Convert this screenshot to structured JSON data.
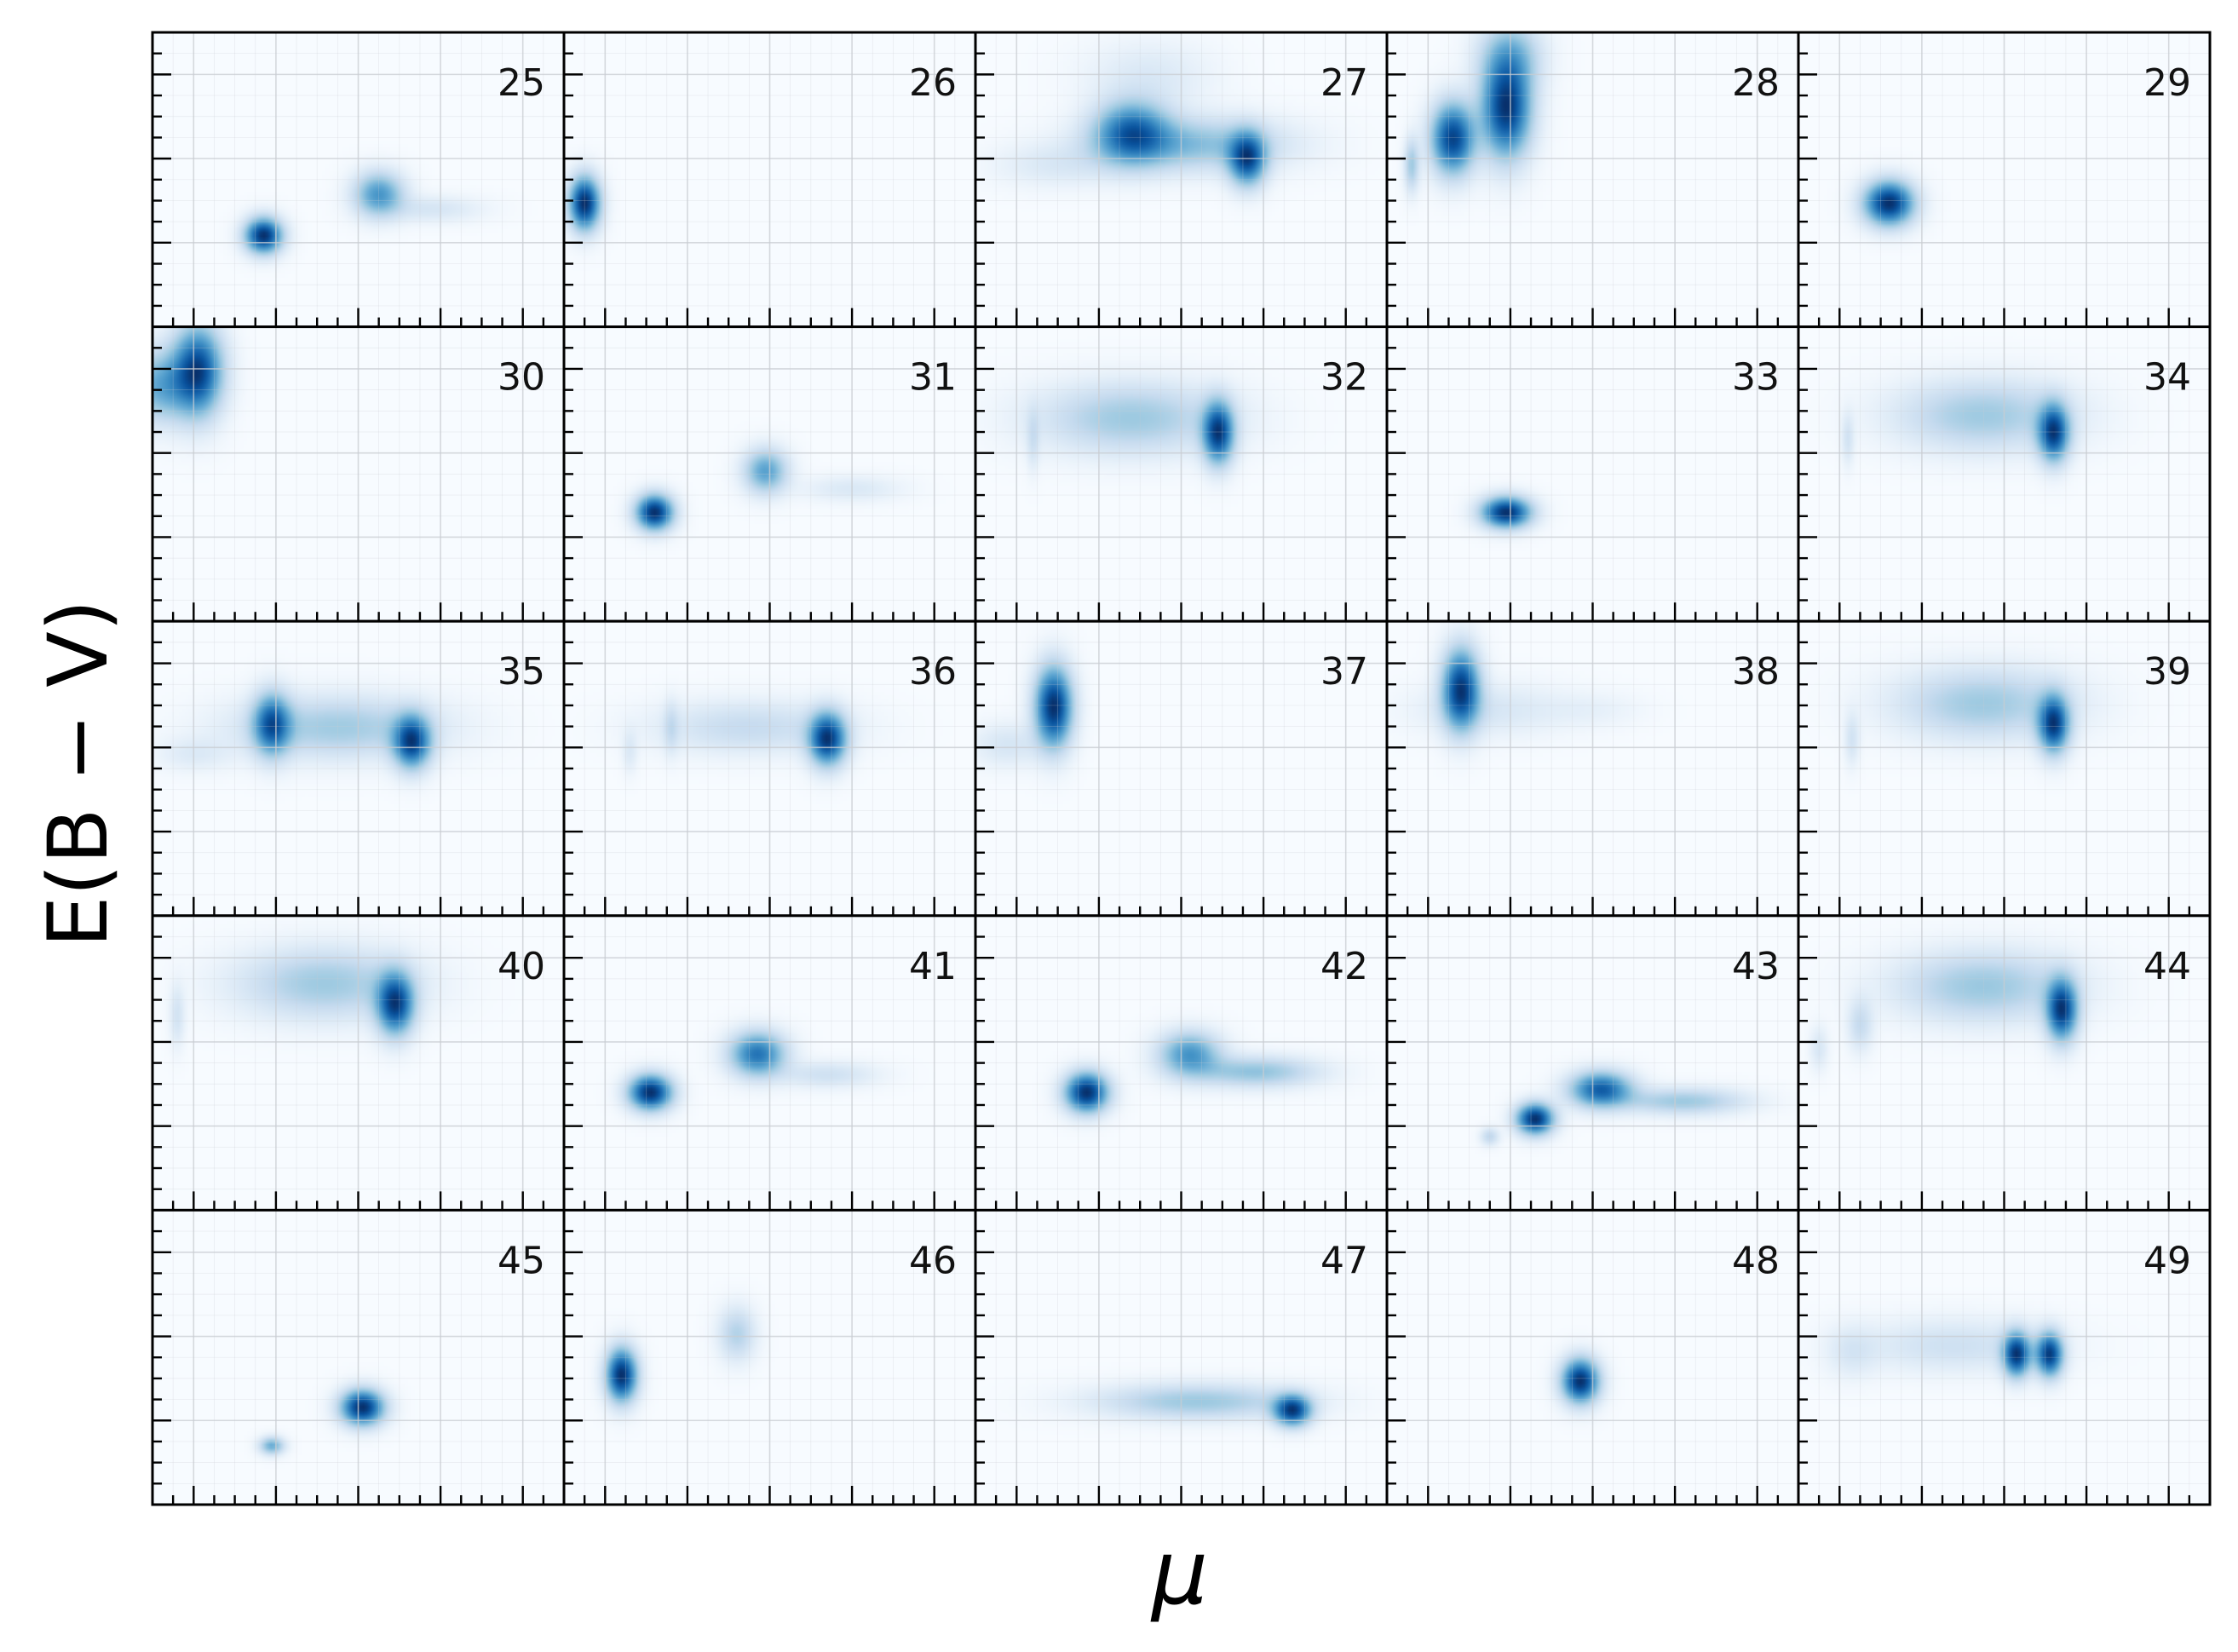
{
  "chart_data": {
    "type": "heatmap",
    "layout": {
      "rows": 5,
      "cols": 5
    },
    "xlabel": "μ",
    "ylabel": "E(B − V)",
    "colormap": "Blues",
    "colors": {
      "low": "#f7fbff",
      "high": "#08306b",
      "grid": "#c8ccd2",
      "frame": "#000000"
    },
    "grid": true,
    "x_range": [
      0,
      1
    ],
    "y_range": [
      0,
      1
    ],
    "panels": [
      {
        "label": "25",
        "blobs": [
          {
            "x": 0.27,
            "y": 0.31,
            "sx": 0.03,
            "sy": 0.04,
            "w": 1.0
          },
          {
            "x": 0.55,
            "y": 0.45,
            "sx": 0.04,
            "sy": 0.05,
            "w": 0.55
          },
          {
            "x": 0.68,
            "y": 0.4,
            "sx": 0.08,
            "sy": 0.03,
            "w": 0.12
          }
        ]
      },
      {
        "label": "26",
        "blobs": [
          {
            "x": 0.05,
            "y": 0.42,
            "sx": 0.025,
            "sy": 0.06,
            "w": 1.0
          }
        ]
      },
      {
        "label": "27",
        "blobs": [
          {
            "x": 0.38,
            "y": 0.66,
            "sx": 0.06,
            "sy": 0.07,
            "w": 0.85
          },
          {
            "x": 0.66,
            "y": 0.57,
            "sx": 0.03,
            "sy": 0.06,
            "w": 1.0
          },
          {
            "x": 0.52,
            "y": 0.62,
            "sx": 0.15,
            "sy": 0.06,
            "w": 0.45
          },
          {
            "x": 0.2,
            "y": 0.55,
            "sx": 0.1,
            "sy": 0.05,
            "w": 0.12
          },
          {
            "x": 0.42,
            "y": 0.85,
            "sx": 0.1,
            "sy": 0.08,
            "w": 0.12
          }
        ]
      },
      {
        "label": "28",
        "blobs": [
          {
            "x": 0.16,
            "y": 0.64,
            "sx": 0.035,
            "sy": 0.08,
            "w": 0.9
          },
          {
            "x": 0.29,
            "y": 0.74,
            "sx": 0.04,
            "sy": 0.11,
            "w": 0.95
          },
          {
            "x": 0.06,
            "y": 0.55,
            "sx": 0.012,
            "sy": 0.06,
            "w": 0.3
          },
          {
            "x": 0.3,
            "y": 0.92,
            "sx": 0.05,
            "sy": 0.08,
            "w": 0.35
          }
        ]
      },
      {
        "label": "29",
        "blobs": [
          {
            "x": 0.22,
            "y": 0.42,
            "sx": 0.04,
            "sy": 0.05,
            "w": 1.0
          }
        ]
      },
      {
        "label": "30",
        "blobs": [
          {
            "x": 0.11,
            "y": 0.85,
            "sx": 0.04,
            "sy": 0.1,
            "w": 1.0
          },
          {
            "x": 0.02,
            "y": 0.8,
            "sx": 0.05,
            "sy": 0.08,
            "w": 0.5
          }
        ]
      },
      {
        "label": "31",
        "blobs": [
          {
            "x": 0.22,
            "y": 0.37,
            "sx": 0.03,
            "sy": 0.04,
            "w": 1.0
          },
          {
            "x": 0.49,
            "y": 0.51,
            "sx": 0.035,
            "sy": 0.05,
            "w": 0.5
          },
          {
            "x": 0.7,
            "y": 0.45,
            "sx": 0.08,
            "sy": 0.03,
            "w": 0.1
          }
        ]
      },
      {
        "label": "32",
        "blobs": [
          {
            "x": 0.59,
            "y": 0.64,
            "sx": 0.025,
            "sy": 0.07,
            "w": 1.0
          },
          {
            "x": 0.38,
            "y": 0.69,
            "sx": 0.15,
            "sy": 0.08,
            "w": 0.35
          },
          {
            "x": 0.14,
            "y": 0.62,
            "sx": 0.01,
            "sy": 0.07,
            "w": 0.15
          }
        ]
      },
      {
        "label": "33",
        "blobs": [
          {
            "x": 0.29,
            "y": 0.37,
            "sx": 0.04,
            "sy": 0.035,
            "w": 1.0
          }
        ]
      },
      {
        "label": "34",
        "blobs": [
          {
            "x": 0.62,
            "y": 0.64,
            "sx": 0.025,
            "sy": 0.065,
            "w": 1.0
          },
          {
            "x": 0.45,
            "y": 0.7,
            "sx": 0.14,
            "sy": 0.08,
            "w": 0.35
          },
          {
            "x": 0.12,
            "y": 0.62,
            "sx": 0.01,
            "sy": 0.06,
            "w": 0.15
          }
        ]
      },
      {
        "label": "35",
        "blobs": [
          {
            "x": 0.29,
            "y": 0.65,
            "sx": 0.03,
            "sy": 0.07,
            "w": 0.85
          },
          {
            "x": 0.63,
            "y": 0.59,
            "sx": 0.03,
            "sy": 0.06,
            "w": 1.0
          },
          {
            "x": 0.45,
            "y": 0.64,
            "sx": 0.16,
            "sy": 0.07,
            "w": 0.35
          },
          {
            "x": 0.1,
            "y": 0.55,
            "sx": 0.06,
            "sy": 0.04,
            "w": 0.1
          }
        ]
      },
      {
        "label": "36",
        "blobs": [
          {
            "x": 0.64,
            "y": 0.6,
            "sx": 0.03,
            "sy": 0.06,
            "w": 1.0
          },
          {
            "x": 0.45,
            "y": 0.64,
            "sx": 0.15,
            "sy": 0.06,
            "w": 0.2
          },
          {
            "x": 0.26,
            "y": 0.64,
            "sx": 0.012,
            "sy": 0.06,
            "w": 0.15
          },
          {
            "x": 0.16,
            "y": 0.56,
            "sx": 0.012,
            "sy": 0.05,
            "w": 0.1
          }
        ]
      },
      {
        "label": "37",
        "blobs": [
          {
            "x": 0.19,
            "y": 0.71,
            "sx": 0.03,
            "sy": 0.09,
            "w": 1.0
          },
          {
            "x": 0.08,
            "y": 0.58,
            "sx": 0.06,
            "sy": 0.05,
            "w": 0.12
          }
        ]
      },
      {
        "label": "38",
        "blobs": [
          {
            "x": 0.18,
            "y": 0.77,
            "sx": 0.03,
            "sy": 0.09,
            "w": 1.0
          },
          {
            "x": 0.25,
            "y": 0.7,
            "sx": 0.12,
            "sy": 0.06,
            "w": 0.12
          },
          {
            "x": 0.5,
            "y": 0.7,
            "sx": 0.08,
            "sy": 0.04,
            "w": 0.05
          }
        ]
      },
      {
        "label": "39",
        "blobs": [
          {
            "x": 0.62,
            "y": 0.65,
            "sx": 0.025,
            "sy": 0.065,
            "w": 1.0
          },
          {
            "x": 0.45,
            "y": 0.72,
            "sx": 0.14,
            "sy": 0.08,
            "w": 0.35
          },
          {
            "x": 0.13,
            "y": 0.6,
            "sx": 0.012,
            "sy": 0.06,
            "w": 0.15
          }
        ]
      },
      {
        "label": "40",
        "blobs": [
          {
            "x": 0.59,
            "y": 0.7,
            "sx": 0.03,
            "sy": 0.07,
            "w": 1.0
          },
          {
            "x": 0.42,
            "y": 0.77,
            "sx": 0.14,
            "sy": 0.08,
            "w": 0.35
          },
          {
            "x": 0.06,
            "y": 0.66,
            "sx": 0.012,
            "sy": 0.07,
            "w": 0.15
          }
        ]
      },
      {
        "label": "41",
        "blobs": [
          {
            "x": 0.21,
            "y": 0.4,
            "sx": 0.035,
            "sy": 0.04,
            "w": 1.0
          },
          {
            "x": 0.47,
            "y": 0.53,
            "sx": 0.045,
            "sy": 0.05,
            "w": 0.7
          },
          {
            "x": 0.64,
            "y": 0.46,
            "sx": 0.08,
            "sy": 0.03,
            "w": 0.15
          }
        ]
      },
      {
        "label": "42",
        "blobs": [
          {
            "x": 0.27,
            "y": 0.4,
            "sx": 0.035,
            "sy": 0.045,
            "w": 1.0
          },
          {
            "x": 0.52,
            "y": 0.53,
            "sx": 0.05,
            "sy": 0.05,
            "w": 0.55
          },
          {
            "x": 0.68,
            "y": 0.47,
            "sx": 0.1,
            "sy": 0.035,
            "w": 0.35
          }
        ]
      },
      {
        "label": "43",
        "blobs": [
          {
            "x": 0.36,
            "y": 0.31,
            "sx": 0.03,
            "sy": 0.035,
            "w": 0.95
          },
          {
            "x": 0.52,
            "y": 0.41,
            "sx": 0.05,
            "sy": 0.04,
            "w": 0.75
          },
          {
            "x": 0.72,
            "y": 0.37,
            "sx": 0.1,
            "sy": 0.03,
            "w": 0.3
          },
          {
            "x": 0.25,
            "y": 0.25,
            "sx": 0.015,
            "sy": 0.02,
            "w": 0.2
          }
        ]
      },
      {
        "label": "44",
        "blobs": [
          {
            "x": 0.64,
            "y": 0.68,
            "sx": 0.025,
            "sy": 0.07,
            "w": 1.0
          },
          {
            "x": 0.45,
            "y": 0.76,
            "sx": 0.14,
            "sy": 0.08,
            "w": 0.35
          },
          {
            "x": 0.15,
            "y": 0.63,
            "sx": 0.02,
            "sy": 0.06,
            "w": 0.2
          },
          {
            "x": 0.05,
            "y": 0.55,
            "sx": 0.015,
            "sy": 0.05,
            "w": 0.12
          }
        ]
      },
      {
        "label": "45",
        "blobs": [
          {
            "x": 0.51,
            "y": 0.33,
            "sx": 0.035,
            "sy": 0.04,
            "w": 1.0
          },
          {
            "x": 0.29,
            "y": 0.2,
            "sx": 0.02,
            "sy": 0.02,
            "w": 0.45
          }
        ]
      },
      {
        "label": "46",
        "blobs": [
          {
            "x": 0.14,
            "y": 0.44,
            "sx": 0.025,
            "sy": 0.06,
            "w": 1.0
          },
          {
            "x": 0.42,
            "y": 0.58,
            "sx": 0.03,
            "sy": 0.06,
            "w": 0.25
          }
        ]
      },
      {
        "label": "47",
        "blobs": [
          {
            "x": 0.77,
            "y": 0.32,
            "sx": 0.03,
            "sy": 0.035,
            "w": 1.0
          },
          {
            "x": 0.54,
            "y": 0.35,
            "sx": 0.16,
            "sy": 0.04,
            "w": 0.35
          }
        ]
      },
      {
        "label": "48",
        "blobs": [
          {
            "x": 0.47,
            "y": 0.42,
            "sx": 0.03,
            "sy": 0.05,
            "w": 1.0
          }
        ]
      },
      {
        "label": "49",
        "blobs": [
          {
            "x": 0.53,
            "y": 0.51,
            "sx": 0.022,
            "sy": 0.05,
            "w": 0.9
          },
          {
            "x": 0.61,
            "y": 0.51,
            "sx": 0.022,
            "sy": 0.05,
            "w": 0.9
          },
          {
            "x": 0.38,
            "y": 0.54,
            "sx": 0.15,
            "sy": 0.06,
            "w": 0.15
          },
          {
            "x": 0.13,
            "y": 0.52,
            "sx": 0.04,
            "sy": 0.06,
            "w": 0.1
          }
        ]
      }
    ]
  }
}
